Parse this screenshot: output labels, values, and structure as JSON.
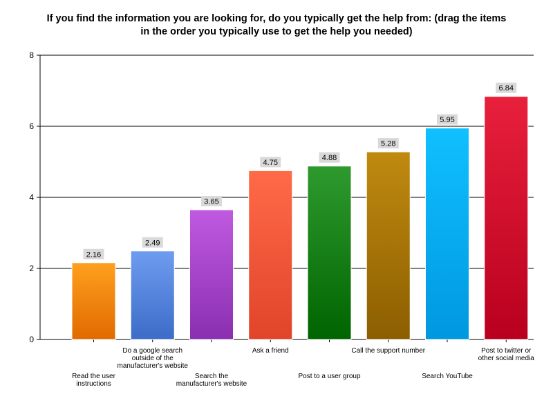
{
  "chart_data": {
    "type": "bar",
    "title": "If you find the information you are looking for, do you typically get the help from: (drag the items\nin the order you typically use to get the help you needed)",
    "categories": [
      "Read the user\ninstructions",
      "Do a google search\noutside of the\nmanufacturer's website",
      "Search the\nmanufacturer's website",
      "Ask a friend",
      "Post to a user group",
      "Call the support number",
      "Search YouTube",
      "Post to twitter or\nother social media"
    ],
    "values": [
      2.16,
      2.49,
      3.65,
      4.75,
      4.88,
      5.28,
      5.95,
      6.84
    ],
    "value_labels": [
      "2.16",
      "2.49",
      "3.65",
      "4.75",
      "4.88",
      "5.28",
      "5.95",
      "6.84"
    ],
    "y_ticks": [
      "0",
      "2",
      "4",
      "6",
      "8"
    ],
    "ylim": [
      0,
      8
    ],
    "grid": true,
    "legend": "none",
    "colors": [
      [
        "#ffa01e",
        "#e06a00"
      ],
      [
        "#6e9cf0",
        "#3d6cc8"
      ],
      [
        "#c05ae0",
        "#8a2fb0"
      ],
      [
        "#ff6a48",
        "#e0442a"
      ],
      [
        "#2e9a2e",
        "#006400"
      ],
      [
        "#c08a10",
        "#8c5e00"
      ],
      [
        "#10c0ff",
        "#0098e0"
      ],
      [
        "#e8203c",
        "#b8001e"
      ]
    ],
    "label_box_color": "#d9d9d9"
  }
}
